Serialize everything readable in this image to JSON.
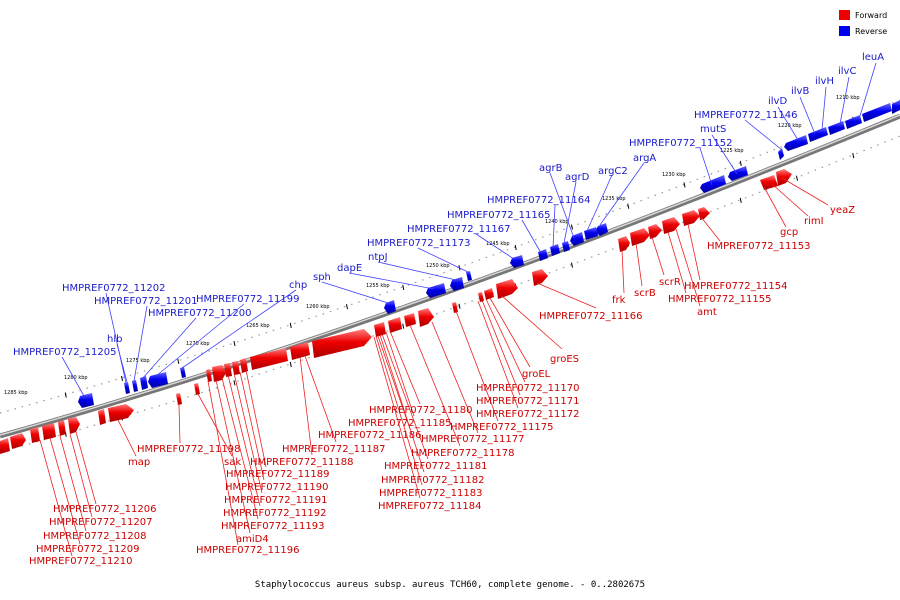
{
  "legend": {
    "items": [
      {
        "label": "Forward",
        "color": "#ee0000"
      },
      {
        "label": "Reverse",
        "color": "#0000ee"
      }
    ]
  },
  "caption": "Staphylococcus aureus subsp. aureus TCH60, complete genome. - 0..2802675",
  "colors": {
    "forward": "#ee0000",
    "reverse": "#0000ee",
    "backbone": "#888888"
  },
  "scale_labels": [
    "1210 kbp",
    "1215 kbp",
    "1220 kbp",
    "1225 kbp",
    "1230 kbp",
    "1235 kbp",
    "1240 kbp",
    "1245 kbp",
    "1250 kbp",
    "1255 kbp",
    "1260 kbp",
    "1265 kbp",
    "1270 kbp",
    "1275 kbp",
    "1280 kbp",
    "1285 kbp"
  ],
  "reverse_labels": [
    "leuA",
    "ilvC",
    "ilvH",
    "ilvB",
    "ilvD",
    "HMPREF0772_11146",
    "mutS",
    "HMPREF0772_11152",
    "argA",
    "argC2",
    "agrB",
    "agrD",
    "HMPREF0772_11164",
    "HMPREF0772_11165",
    "HMPREF0772_11167",
    "HMPREF0772_11173",
    "ntpJ",
    "dapE",
    "sph",
    "chp",
    "HMPREF0772_11199",
    "HMPREF0772_11200",
    "HMPREF0772_11201",
    "HMPREF0772_11202",
    "hlb",
    "HMPREF0772_11205"
  ],
  "forward_labels": [
    "yeaZ",
    "rimI",
    "gcp",
    "HMPREF0772_11153",
    "HMPREF0772_11154",
    "HMPREF0772_11155",
    "amt",
    "scrR",
    "scrB",
    "frk",
    "HMPREF0772_11166",
    "groES",
    "groEL",
    "HMPREF0772_11170",
    "HMPREF0772_11171",
    "HMPREF0772_11172",
    "HMPREF0772_11175",
    "HMPREF0772_11177",
    "HMPREF0772_11178",
    "HMPREF0772_11180",
    "HMPREF0772_11185",
    "HMPREF0772_11186",
    "HMPREF0772_11181",
    "HMPREF0772_11182",
    "HMPREF0772_11183",
    "HMPREF0772_11184",
    "HMPREF0772_11187",
    "HMPREF0772_11188",
    "HMPREF0772_11189",
    "HMPREF0772_11190",
    "HMPREF0772_11191",
    "HMPREF0772_11192",
    "HMPREF0772_11193",
    "amiD4",
    "HMPREF0772_11196",
    "sak",
    "HMPREF0772_11198",
    "map",
    "HMPREF0772_11206",
    "HMPREF0772_11207",
    "HMPREF0772_11208",
    "HMPREF0772_11209",
    "HMPREF0772_11210"
  ]
}
